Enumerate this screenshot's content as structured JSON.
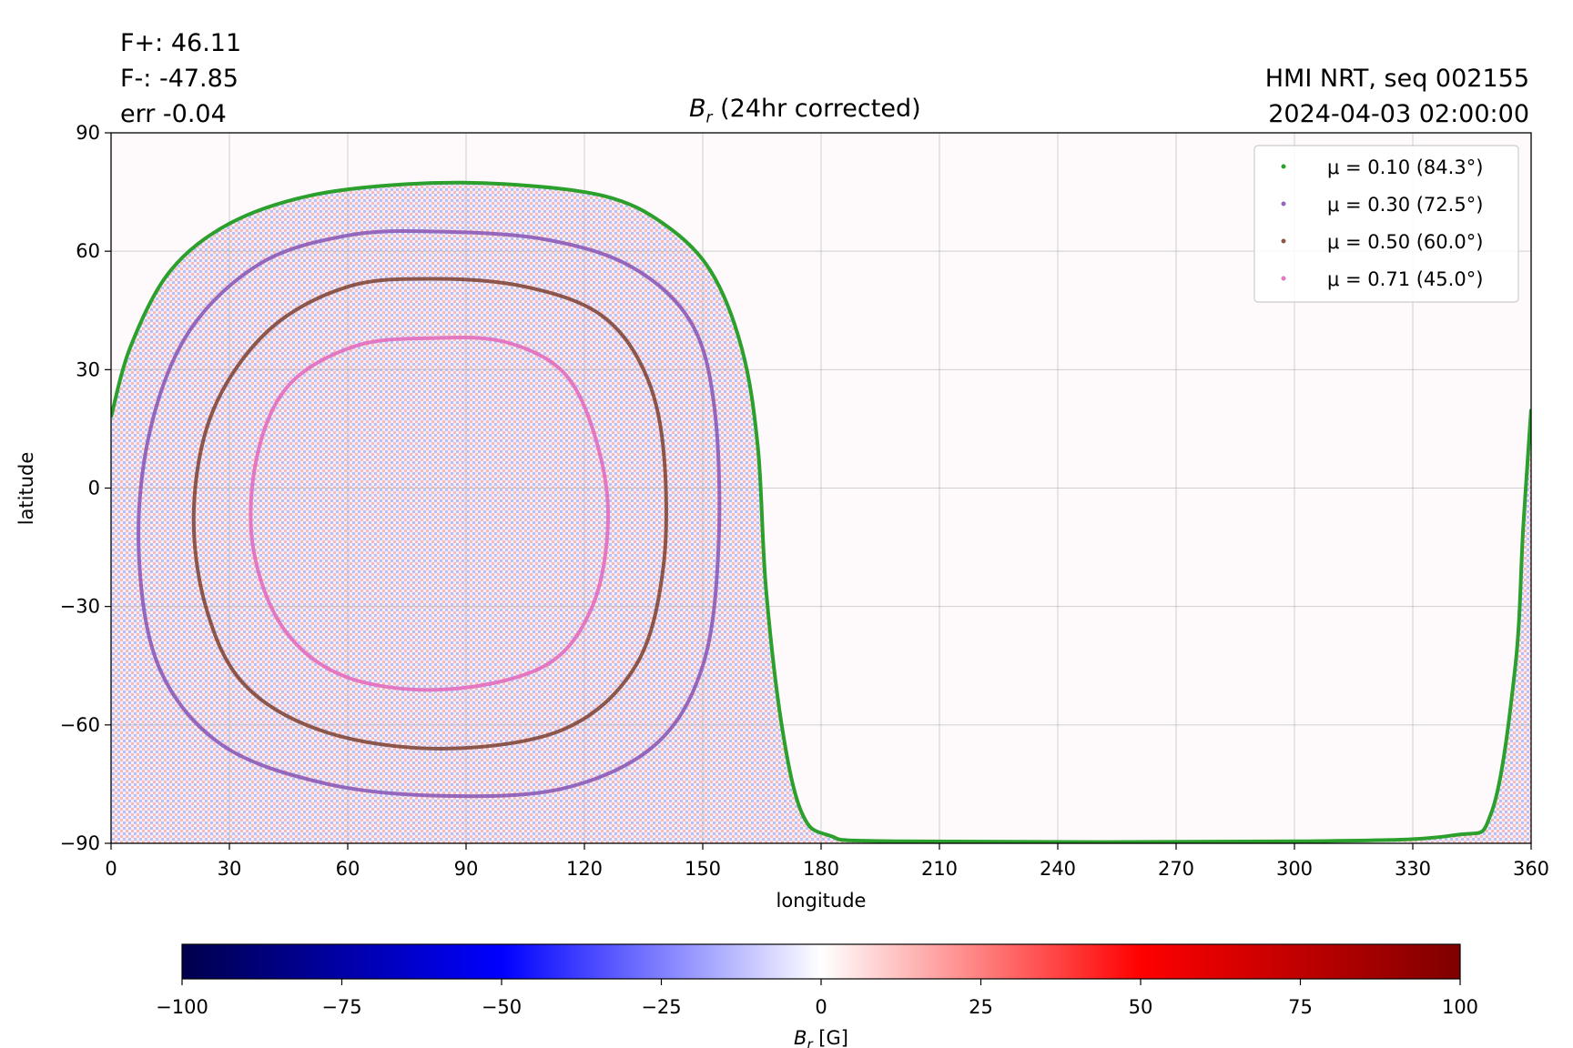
{
  "header": {
    "flux_pos": "F+: 46.11",
    "flux_neg": "F-: -47.85",
    "flux_err": "err -0.04",
    "source": "HMI NRT, seq 002155",
    "datetime": "2024-04-03 02:00:00"
  },
  "chart_data": {
    "type": "heatmap",
    "title": "B_r (24hr corrected)",
    "xlabel": "longitude",
    "ylabel": "latitude",
    "xlim": [
      0,
      360
    ],
    "ylim": [
      -90,
      90
    ],
    "xticks": [
      0,
      30,
      60,
      90,
      120,
      150,
      180,
      210,
      240,
      270,
      300,
      330,
      360
    ],
    "yticks": [
      -90,
      -60,
      -30,
      0,
      30,
      60,
      90
    ],
    "grid": true,
    "legend_position": "top-right",
    "legend": [
      {
        "label": "μ = 0.10 (84.3°)",
        "color": "#2ca02c"
      },
      {
        "label": "μ = 0.30 (72.5°)",
        "color": "#9467bd"
      },
      {
        "label": "μ = 0.50 (60.0°)",
        "color": "#8c564b"
      },
      {
        "label": "μ = 0.71 (45.0°)",
        "color": "#e377c2"
      }
    ],
    "contours": [
      {
        "mu": 0.1,
        "color": "#2ca02c",
        "points": [
          [
            0,
            18
          ],
          [
            5,
            36
          ],
          [
            15,
            55
          ],
          [
            30,
            67
          ],
          [
            50,
            74
          ],
          [
            75,
            77
          ],
          [
            100,
            77
          ],
          [
            125,
            74
          ],
          [
            140,
            67
          ],
          [
            152,
            55
          ],
          [
            160,
            35
          ],
          [
            164,
            10
          ],
          [
            166,
            -25
          ],
          [
            170,
            -60
          ],
          [
            175,
            -82
          ],
          [
            182,
            -88
          ],
          [
            200,
            -89.5
          ],
          [
            300,
            -89.5
          ],
          [
            340,
            -88
          ],
          [
            350,
            -82
          ],
          [
            356,
            -45
          ],
          [
            358,
            -10
          ],
          [
            360,
            20
          ]
        ]
      },
      {
        "mu": 0.3,
        "color": "#9467bd",
        "points": [
          [
            82,
            65
          ],
          [
            110,
            63
          ],
          [
            132,
            56
          ],
          [
            147,
            42
          ],
          [
            153,
            20
          ],
          [
            154,
            -15
          ],
          [
            150,
            -45
          ],
          [
            138,
            -65
          ],
          [
            115,
            -76
          ],
          [
            85,
            -78
          ],
          [
            55,
            -75
          ],
          [
            28,
            -65
          ],
          [
            12,
            -45
          ],
          [
            7,
            -15
          ],
          [
            10,
            15
          ],
          [
            20,
            40
          ],
          [
            38,
            57
          ],
          [
            60,
            64
          ],
          [
            82,
            65
          ]
        ]
      },
      {
        "mu": 0.5,
        "color": "#8c564b",
        "points": [
          [
            82,
            53
          ],
          [
            105,
            51
          ],
          [
            124,
            44
          ],
          [
            135,
            30
          ],
          [
            140,
            10
          ],
          [
            140,
            -20
          ],
          [
            133,
            -45
          ],
          [
            115,
            -61
          ],
          [
            85,
            -66
          ],
          [
            55,
            -62
          ],
          [
            34,
            -50
          ],
          [
            24,
            -30
          ],
          [
            21,
            -5
          ],
          [
            26,
            20
          ],
          [
            40,
            40
          ],
          [
            60,
            51
          ],
          [
            82,
            53
          ]
        ]
      },
      {
        "mu": 0.71,
        "color": "#e377c2",
        "points": [
          [
            82,
            38
          ],
          [
            100,
            37
          ],
          [
            115,
            29
          ],
          [
            123,
            12
          ],
          [
            126,
            -8
          ],
          [
            122,
            -30
          ],
          [
            110,
            -45
          ],
          [
            85,
            -51
          ],
          [
            60,
            -48
          ],
          [
            44,
            -36
          ],
          [
            36,
            -15
          ],
          [
            37,
            8
          ],
          [
            45,
            26
          ],
          [
            62,
            36
          ],
          [
            82,
            38
          ]
        ]
      }
    ],
    "colorbar": {
      "label": "B_r [G]",
      "range": [
        -100,
        100
      ],
      "ticks": [
        -100,
        -75,
        -50,
        -25,
        0,
        25,
        50,
        75,
        100
      ],
      "tick_labels": [
        "−100",
        "−75",
        "−50",
        "−25",
        "0",
        "25",
        "50",
        "75",
        "100"
      ],
      "colormap": "seismic"
    }
  }
}
